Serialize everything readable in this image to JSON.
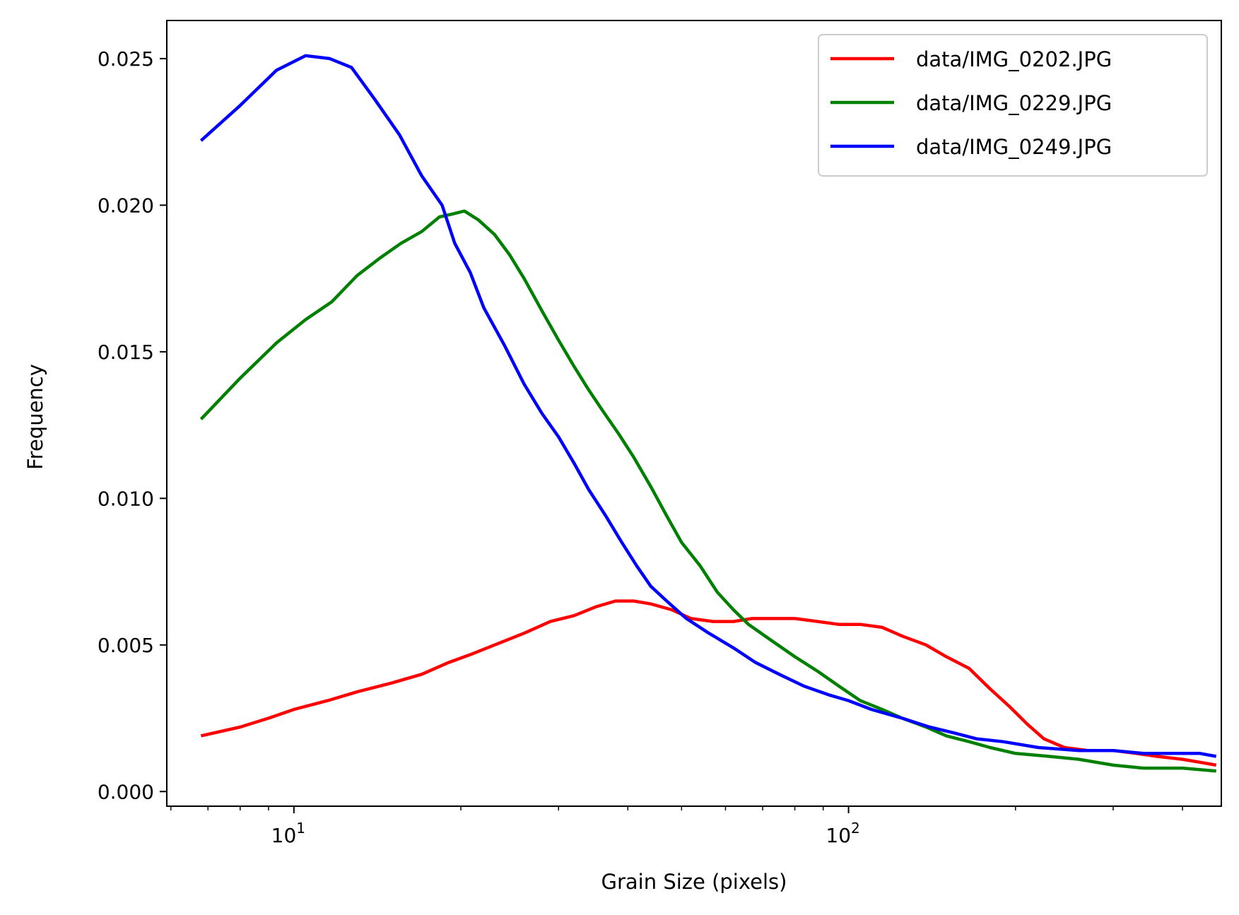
{
  "chart_data": {
    "type": "line",
    "xlabel": "Grain Size (pixels)",
    "ylabel": "Frequency",
    "xscale": "log",
    "xlim": [
      5.9,
      470
    ],
    "ylim": [
      -0.0005,
      0.0263
    ],
    "grid": false,
    "legend_position": "top-right",
    "yticks": [
      0.0,
      0.005,
      0.01,
      0.015,
      0.02,
      0.025
    ],
    "ytick_labels": [
      "0.000",
      "0.005",
      "0.010",
      "0.015",
      "0.020",
      "0.025"
    ],
    "xticks": [
      10,
      100
    ],
    "xtick_labels": [
      {
        "base": "10",
        "exp": "1"
      },
      {
        "base": "10",
        "exp": "2"
      }
    ],
    "series": [
      {
        "name": "data/IMG_0202.JPG",
        "color": "#ff0000",
        "points": [
          [
            6.8,
            0.0019
          ],
          [
            8,
            0.0022
          ],
          [
            9,
            0.0025
          ],
          [
            10,
            0.0028
          ],
          [
            11.5,
            0.0031
          ],
          [
            13,
            0.0034
          ],
          [
            15,
            0.0037
          ],
          [
            17,
            0.004
          ],
          [
            19,
            0.0044
          ],
          [
            21,
            0.0047
          ],
          [
            23,
            0.005
          ],
          [
            26,
            0.0054
          ],
          [
            29,
            0.0058
          ],
          [
            32,
            0.006
          ],
          [
            35,
            0.0063
          ],
          [
            38,
            0.0065
          ],
          [
            41,
            0.0065
          ],
          [
            44,
            0.0064
          ],
          [
            48,
            0.0062
          ],
          [
            52,
            0.0059
          ],
          [
            57,
            0.0058
          ],
          [
            62,
            0.0058
          ],
          [
            67,
            0.0059
          ],
          [
            73,
            0.0059
          ],
          [
            80,
            0.0059
          ],
          [
            88,
            0.0058
          ],
          [
            96,
            0.0057
          ],
          [
            105,
            0.0057
          ],
          [
            115,
            0.0056
          ],
          [
            125,
            0.0053
          ],
          [
            138,
            0.005
          ],
          [
            150,
            0.0046
          ],
          [
            165,
            0.0042
          ],
          [
            180,
            0.0035
          ],
          [
            195,
            0.0029
          ],
          [
            210,
            0.0023
          ],
          [
            225,
            0.0018
          ],
          [
            245,
            0.0015
          ],
          [
            270,
            0.0014
          ],
          [
            300,
            0.0014
          ],
          [
            330,
            0.0013
          ],
          [
            360,
            0.0012
          ],
          [
            400,
            0.0011
          ],
          [
            430,
            0.001
          ],
          [
            460,
            0.0009
          ]
        ]
      },
      {
        "name": "data/IMG_0229.JPG",
        "color": "#008000",
        "points": [
          [
            6.8,
            0.0127
          ],
          [
            8,
            0.0141
          ],
          [
            9.3,
            0.0153
          ],
          [
            10.5,
            0.0161
          ],
          [
            11.7,
            0.0167
          ],
          [
            13,
            0.0176
          ],
          [
            14.3,
            0.0182
          ],
          [
            15.6,
            0.0187
          ],
          [
            17,
            0.0191
          ],
          [
            18.3,
            0.0196
          ],
          [
            19.3,
            0.0197
          ],
          [
            20.3,
            0.0198
          ],
          [
            21.5,
            0.0195
          ],
          [
            23,
            0.019
          ],
          [
            24.5,
            0.0183
          ],
          [
            26,
            0.0175
          ],
          [
            28,
            0.0164
          ],
          [
            30,
            0.0154
          ],
          [
            32,
            0.0145
          ],
          [
            34,
            0.0137
          ],
          [
            36,
            0.013
          ],
          [
            38.5,
            0.0122
          ],
          [
            41,
            0.0114
          ],
          [
            44,
            0.0104
          ],
          [
            47,
            0.0094
          ],
          [
            50,
            0.0085
          ],
          [
            54,
            0.0077
          ],
          [
            58,
            0.0068
          ],
          [
            62,
            0.0062
          ],
          [
            66,
            0.0057
          ],
          [
            72,
            0.0052
          ],
          [
            80,
            0.0046
          ],
          [
            88,
            0.0041
          ],
          [
            96,
            0.0036
          ],
          [
            105,
            0.0031
          ],
          [
            115,
            0.0028
          ],
          [
            125,
            0.0025
          ],
          [
            138,
            0.0022
          ],
          [
            150,
            0.0019
          ],
          [
            165,
            0.0017
          ],
          [
            180,
            0.0015
          ],
          [
            200,
            0.0013
          ],
          [
            230,
            0.0012
          ],
          [
            260,
            0.0011
          ],
          [
            300,
            0.0009
          ],
          [
            340,
            0.0008
          ],
          [
            400,
            0.0008
          ],
          [
            460,
            0.0007
          ]
        ]
      },
      {
        "name": "data/IMG_0249.JPG",
        "color": "#0000ff",
        "points": [
          [
            6.8,
            0.0222
          ],
          [
            8,
            0.0234
          ],
          [
            9.3,
            0.0246
          ],
          [
            10.5,
            0.0251
          ],
          [
            11.6,
            0.025
          ],
          [
            12.7,
            0.0247
          ],
          [
            14,
            0.0236
          ],
          [
            15.5,
            0.0224
          ],
          [
            17,
            0.021
          ],
          [
            18.5,
            0.02
          ],
          [
            19.5,
            0.0187
          ],
          [
            20.8,
            0.0177
          ],
          [
            22,
            0.0165
          ],
          [
            24,
            0.0152
          ],
          [
            26,
            0.0139
          ],
          [
            28,
            0.0129
          ],
          [
            30,
            0.0121
          ],
          [
            32,
            0.0112
          ],
          [
            34,
            0.0103
          ],
          [
            36.5,
            0.0094
          ],
          [
            39,
            0.0085
          ],
          [
            41.5,
            0.0077
          ],
          [
            44,
            0.007
          ],
          [
            47,
            0.0065
          ],
          [
            51,
            0.0059
          ],
          [
            56,
            0.0054
          ],
          [
            62,
            0.0049
          ],
          [
            68,
            0.0044
          ],
          [
            75,
            0.004
          ],
          [
            83,
            0.0036
          ],
          [
            92,
            0.0033
          ],
          [
            100,
            0.0031
          ],
          [
            110,
            0.0028
          ],
          [
            125,
            0.0025
          ],
          [
            140,
            0.0022
          ],
          [
            155,
            0.002
          ],
          [
            170,
            0.0018
          ],
          [
            190,
            0.0017
          ],
          [
            220,
            0.0015
          ],
          [
            260,
            0.0014
          ],
          [
            300,
            0.0014
          ],
          [
            340,
            0.0013
          ],
          [
            390,
            0.0013
          ],
          [
            430,
            0.0013
          ],
          [
            460,
            0.0012
          ]
        ]
      }
    ]
  }
}
